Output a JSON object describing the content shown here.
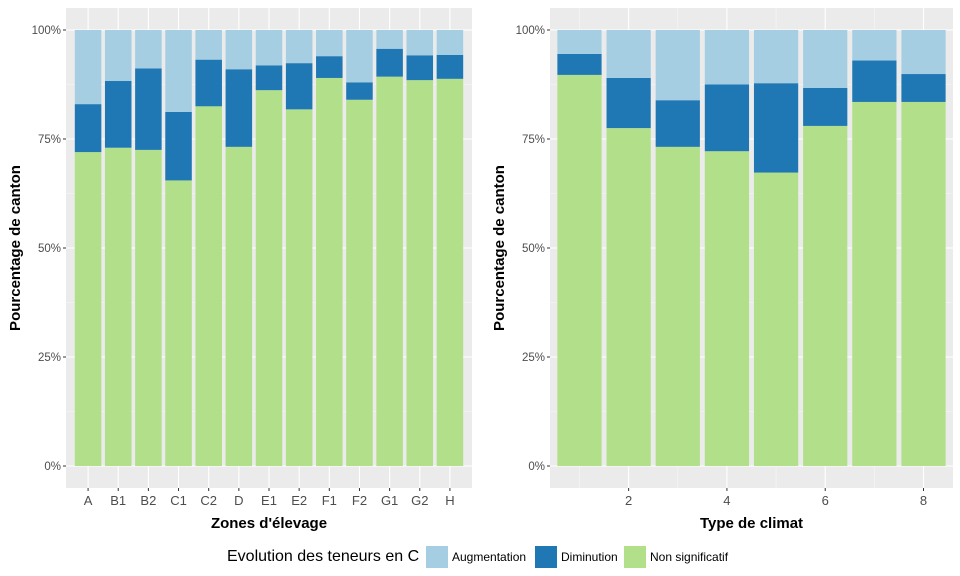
{
  "chart_data": [
    {
      "type": "bar",
      "stacked": true,
      "xlabel": "Zones d'élevage",
      "ylabel": "Pourcentage de canton",
      "categories": [
        "A",
        "B1",
        "B2",
        "C1",
        "C2",
        "D",
        "E1",
        "E2",
        "F1",
        "F2",
        "G1",
        "G2",
        "H"
      ],
      "ylim": [
        0,
        1
      ],
      "yticks": [
        "0%",
        "25%",
        "50%",
        "75%",
        "100%"
      ],
      "grid": true,
      "series": [
        {
          "name": "Non significatif",
          "color": "#b2df8a",
          "values": [
            0.72,
            0.73,
            0.725,
            0.655,
            0.825,
            0.732,
            0.862,
            0.818,
            0.89,
            0.84,
            0.893,
            0.885,
            0.888
          ]
        },
        {
          "name": "Diminution",
          "color": "#1f78b4",
          "values": [
            0.11,
            0.153,
            0.187,
            0.157,
            0.107,
            0.178,
            0.057,
            0.106,
            0.05,
            0.04,
            0.064,
            0.057,
            0.055
          ]
        },
        {
          "name": "Augmentation",
          "color": "#a6cee3",
          "values": [
            0.17,
            0.117,
            0.088,
            0.188,
            0.068,
            0.09,
            0.081,
            0.076,
            0.06,
            0.12,
            0.043,
            0.058,
            0.057
          ]
        }
      ]
    },
    {
      "type": "bar",
      "stacked": true,
      "xlabel": "Type de climat",
      "ylabel": "Pourcentage de canton",
      "x": [
        1,
        2,
        3,
        4,
        5,
        6,
        7,
        8
      ],
      "xticks": [
        "2",
        "4",
        "6",
        "8"
      ],
      "ylim": [
        0,
        1
      ],
      "yticks": [
        "0%",
        "25%",
        "50%",
        "75%",
        "100%"
      ],
      "grid": true,
      "series": [
        {
          "name": "Non significatif",
          "color": "#b2df8a",
          "values": [
            0.897,
            0.775,
            0.732,
            0.722,
            0.673,
            0.78,
            0.835,
            0.835
          ]
        },
        {
          "name": "Diminution",
          "color": "#1f78b4",
          "values": [
            0.048,
            0.115,
            0.107,
            0.153,
            0.205,
            0.087,
            0.095,
            0.064
          ]
        },
        {
          "name": "Augmentation",
          "color": "#a6cee3",
          "values": [
            0.055,
            0.11,
            0.161,
            0.125,
            0.122,
            0.133,
            0.07,
            0.101
          ]
        }
      ]
    }
  ],
  "legend": {
    "title": "Evolution des teneurs en C",
    "items": [
      {
        "label": "Augmentation",
        "color": "#a6cee3"
      },
      {
        "label": "Diminution",
        "color": "#1f78b4"
      },
      {
        "label": "Non significatif",
        "color": "#b2df8a"
      }
    ]
  }
}
